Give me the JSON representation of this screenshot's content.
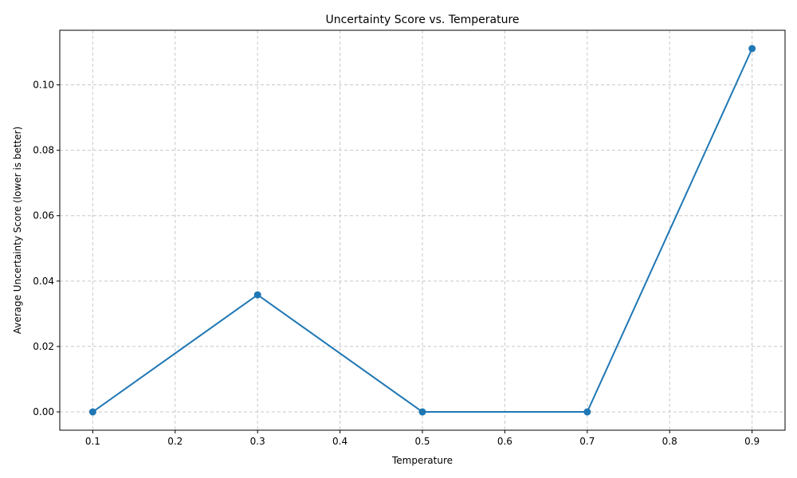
{
  "chart_data": {
    "type": "line",
    "title": "Uncertainty Score vs. Temperature",
    "xlabel": "Temperature",
    "ylabel": "Average Uncertainty Score (lower is better)",
    "x": [
      0.1,
      0.3,
      0.5,
      0.7,
      0.9
    ],
    "series": [
      {
        "values": [
          0.0,
          0.0358,
          0.0,
          0.0,
          0.1111
        ]
      }
    ],
    "xlim": [
      0.06,
      0.94
    ],
    "ylim": [
      -0.0056,
      0.1167
    ],
    "xticks": [
      0.1,
      0.2,
      0.3,
      0.4,
      0.5,
      0.6,
      0.7,
      0.8,
      0.9
    ],
    "xtick_labels": [
      "0.1",
      "0.2",
      "0.3",
      "0.4",
      "0.5",
      "0.6",
      "0.7",
      "0.8",
      "0.9"
    ],
    "yticks": [
      0.0,
      0.02,
      0.04,
      0.06,
      0.08,
      0.1
    ],
    "ytick_labels": [
      "0.00",
      "0.02",
      "0.04",
      "0.06",
      "0.08",
      "0.10"
    ],
    "grid": true,
    "marker": "circle",
    "line_color": "#1f77b4",
    "grid_color": "#c8c8c8"
  }
}
